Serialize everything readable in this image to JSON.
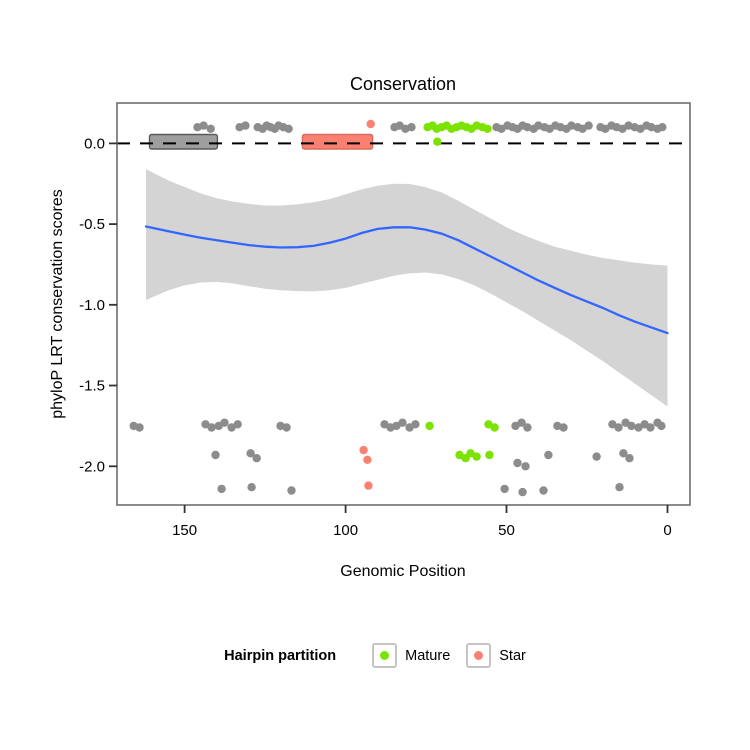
{
  "chart_data": {
    "type": "scatter",
    "title": "Conservation",
    "xlabel": "Genomic Position",
    "ylabel": "phyloP LRT conservation scores",
    "x_axis_reversed": true,
    "grid": false,
    "xlim": [
      171,
      -7
    ],
    "ylim": [
      0.25,
      -2.24
    ],
    "x_ticks": [
      150,
      100,
      50,
      0
    ],
    "x_tick_labels": [
      "150",
      "100",
      "50",
      "0"
    ],
    "y_ticks": [
      0,
      -0.5,
      -1,
      -1.5,
      -2
    ],
    "y_tick_labels": [
      "0.0",
      "-0.5",
      "-1.0",
      "-1.5",
      "-2.0"
    ],
    "zero_line": {
      "y": 0,
      "style": "dashed",
      "color": "#000000"
    },
    "colors": {
      "other": "#8C8C8C",
      "mature": "#7CE300",
      "star": "#FA8072",
      "smooth": "#3366FF",
      "ribbon": "#D4D4D4",
      "panel_border": "#6E6E6E"
    },
    "partition_rects": [
      {
        "name": "hairpin-gray",
        "xmin": 160.9,
        "xmax": 139.8,
        "ymin": -0.035,
        "ymax": 0.055,
        "fill": "#9E9E9E",
        "stroke": "#5A5A5A"
      },
      {
        "name": "star",
        "xmin": 113.4,
        "xmax": 91.6,
        "ymin": -0.035,
        "ymax": 0.055,
        "fill": "#FA8072",
        "stroke": "#D96C5C"
      }
    ],
    "smooth": {
      "x": [
        162,
        155,
        150,
        145,
        140,
        135,
        130,
        125,
        120,
        115,
        110,
        105,
        100,
        95,
        90,
        85,
        80,
        75,
        70,
        65,
        60,
        55,
        50,
        45,
        40,
        35,
        30,
        25,
        20,
        15,
        10,
        5,
        0
      ],
      "y": [
        -0.515,
        -0.545,
        -0.565,
        -0.585,
        -0.6,
        -0.615,
        -0.63,
        -0.64,
        -0.645,
        -0.643,
        -0.635,
        -0.615,
        -0.59,
        -0.555,
        -0.53,
        -0.52,
        -0.52,
        -0.535,
        -0.56,
        -0.6,
        -0.65,
        -0.7,
        -0.75,
        -0.8,
        -0.85,
        -0.895,
        -0.94,
        -0.98,
        -1.02,
        -1.065,
        -1.105,
        -1.14,
        -1.175
      ]
    },
    "ribbon": {
      "x": [
        162,
        155,
        150,
        145,
        140,
        135,
        130,
        125,
        120,
        115,
        110,
        105,
        100,
        95,
        90,
        85,
        80,
        75,
        70,
        65,
        60,
        55,
        50,
        45,
        40,
        35,
        30,
        25,
        20,
        15,
        10,
        5,
        0
      ],
      "upper": [
        -0.16,
        -0.23,
        -0.27,
        -0.31,
        -0.34,
        -0.36,
        -0.375,
        -0.385,
        -0.385,
        -0.378,
        -0.365,
        -0.345,
        -0.315,
        -0.285,
        -0.262,
        -0.25,
        -0.252,
        -0.272,
        -0.305,
        -0.355,
        -0.41,
        -0.465,
        -0.52,
        -0.565,
        -0.605,
        -0.64,
        -0.665,
        -0.69,
        -0.71,
        -0.725,
        -0.74,
        -0.75,
        -0.758
      ],
      "lower": [
        -0.97,
        -0.91,
        -0.88,
        -0.862,
        -0.858,
        -0.868,
        -0.885,
        -0.9,
        -0.91,
        -0.915,
        -0.917,
        -0.91,
        -0.895,
        -0.87,
        -0.845,
        -0.82,
        -0.805,
        -0.8,
        -0.812,
        -0.84,
        -0.88,
        -0.93,
        -0.985,
        -1.04,
        -1.1,
        -1.16,
        -1.22,
        -1.285,
        -1.35,
        -1.42,
        -1.49,
        -1.56,
        -1.63
      ]
    },
    "points": {
      "other": [
        [
          146,
          0.1
        ],
        [
          144.1,
          0.11
        ],
        [
          141.9,
          0.09
        ],
        [
          132.9,
          0.1
        ],
        [
          131.1,
          0.11
        ],
        [
          127.3,
          0.1
        ],
        [
          125.8,
          0.09
        ],
        [
          124.5,
          0.11
        ],
        [
          123.3,
          0.1
        ],
        [
          122,
          0.09
        ],
        [
          120.8,
          0.11
        ],
        [
          119.3,
          0.1
        ],
        [
          117.7,
          0.09
        ],
        [
          84.8,
          0.1
        ],
        [
          83.2,
          0.11
        ],
        [
          81.4,
          0.09
        ],
        [
          79.5,
          0.1
        ],
        [
          53.1,
          0.1
        ],
        [
          51.6,
          0.09
        ],
        [
          49.7,
          0.11
        ],
        [
          48.1,
          0.1
        ],
        [
          46.6,
          0.09
        ],
        [
          45,
          0.11
        ],
        [
          43.5,
          0.1
        ],
        [
          41.6,
          0.09
        ],
        [
          40.1,
          0.11
        ],
        [
          38.2,
          0.1
        ],
        [
          36.6,
          0.09
        ],
        [
          34.8,
          0.11
        ],
        [
          33.2,
          0.1
        ],
        [
          31.4,
          0.09
        ],
        [
          29.8,
          0.11
        ],
        [
          27.9,
          0.1
        ],
        [
          26.4,
          0.09
        ],
        [
          24.5,
          0.11
        ],
        [
          20.8,
          0.1
        ],
        [
          19.3,
          0.09
        ],
        [
          17.4,
          0.11
        ],
        [
          15.8,
          0.1
        ],
        [
          14,
          0.09
        ],
        [
          12.1,
          0.11
        ],
        [
          10.2,
          0.1
        ],
        [
          8.4,
          0.09
        ],
        [
          6.5,
          0.11
        ],
        [
          5,
          0.1
        ],
        [
          3.1,
          0.09
        ],
        [
          1.6,
          0.1
        ],
        [
          165.8,
          -1.75
        ],
        [
          164,
          -1.76
        ],
        [
          143.5,
          -1.74
        ],
        [
          141.6,
          -1.76
        ],
        [
          139.4,
          -1.75
        ],
        [
          137.6,
          -1.73
        ],
        [
          135.4,
          -1.76
        ],
        [
          133.5,
          -1.74
        ],
        [
          120.2,
          -1.75
        ],
        [
          118.3,
          -1.76
        ],
        [
          87.9,
          -1.74
        ],
        [
          86,
          -1.76
        ],
        [
          84.2,
          -1.75
        ],
        [
          82.3,
          -1.73
        ],
        [
          80.1,
          -1.76
        ],
        [
          78.3,
          -1.74
        ],
        [
          47.2,
          -1.75
        ],
        [
          45.3,
          -1.73
        ],
        [
          43.5,
          -1.76
        ],
        [
          34.2,
          -1.75
        ],
        [
          32.3,
          -1.76
        ],
        [
          17.1,
          -1.74
        ],
        [
          15.2,
          -1.76
        ],
        [
          13,
          -1.73
        ],
        [
          11.2,
          -1.75
        ],
        [
          9,
          -1.76
        ],
        [
          7.1,
          -1.74
        ],
        [
          5.3,
          -1.76
        ],
        [
          3.1,
          -1.73
        ],
        [
          1.9,
          -1.75
        ],
        [
          140.4,
          -1.93
        ],
        [
          129.5,
          -1.92
        ],
        [
          127.6,
          -1.95
        ],
        [
          46.6,
          -1.98
        ],
        [
          44.1,
          -2.0
        ],
        [
          37,
          -1.93
        ],
        [
          22,
          -1.94
        ],
        [
          13.7,
          -1.92
        ],
        [
          11.8,
          -1.95
        ],
        [
          138.5,
          -2.14
        ],
        [
          129.2,
          -2.13
        ],
        [
          116.8,
          -2.15
        ],
        [
          50.6,
          -2.14
        ],
        [
          45,
          -2.16
        ],
        [
          38.5,
          -2.15
        ],
        [
          14.9,
          -2.13
        ]
      ],
      "mature": [
        [
          74.5,
          0.1
        ],
        [
          73,
          0.11
        ],
        [
          71.7,
          0.09
        ],
        [
          70.2,
          0.1
        ],
        [
          68.6,
          0.11
        ],
        [
          67.1,
          0.09
        ],
        [
          65.5,
          0.1
        ],
        [
          64,
          0.11
        ],
        [
          62.4,
          0.1
        ],
        [
          60.9,
          0.09
        ],
        [
          59.3,
          0.11
        ],
        [
          57.5,
          0.1
        ],
        [
          55.9,
          0.09
        ],
        [
          71.5,
          0.01
        ],
        [
          73.9,
          -1.75
        ],
        [
          55.6,
          -1.74
        ],
        [
          53.7,
          -1.76
        ],
        [
          64.6,
          -1.93
        ],
        [
          62.7,
          -1.95
        ],
        [
          61.2,
          -1.92
        ],
        [
          59.3,
          -1.94
        ],
        [
          55.3,
          -1.93
        ]
      ],
      "star": [
        [
          92.2,
          0.12
        ],
        [
          94.4,
          -1.9
        ],
        [
          93.2,
          -1.96
        ],
        [
          92.9,
          -2.12
        ]
      ]
    },
    "legend": {
      "title": "Hairpin partition",
      "items": [
        {
          "label": "Mature",
          "color": "#7CE300"
        },
        {
          "label": "Star",
          "color": "#FA8072"
        }
      ]
    }
  }
}
